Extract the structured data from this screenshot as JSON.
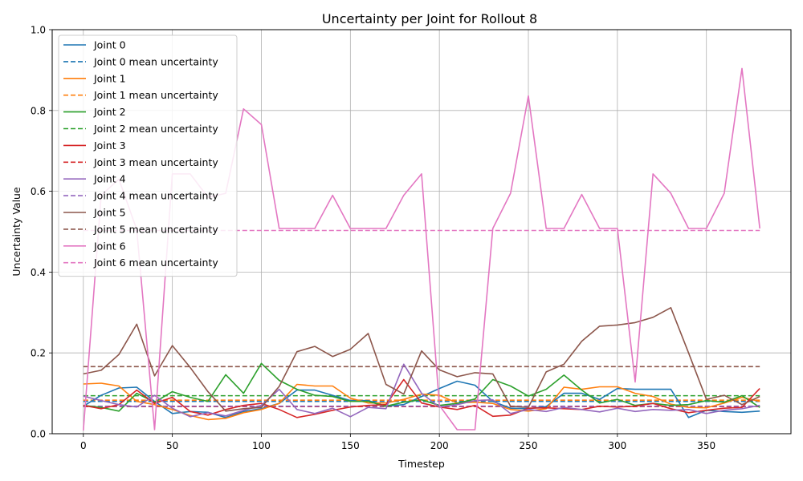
{
  "chart_data": {
    "type": "line",
    "title": "Uncertainty per Joint for Rollout 8",
    "xlabel": "Timestep",
    "ylabel": "Uncertainty Value",
    "xlim": [
      -17.5,
      397.5
    ],
    "ylim": [
      0,
      1
    ],
    "xticks": [
      0,
      50,
      100,
      150,
      200,
      250,
      300,
      350
    ],
    "yticks": [
      0.0,
      0.2,
      0.4,
      0.6,
      0.8,
      1.0
    ],
    "ytick_labels": [
      "0.0",
      "0.2",
      "0.4",
      "0.6",
      "0.8",
      "1.0"
    ],
    "grid": true,
    "legend_position": "upper-left",
    "x": [
      0,
      10,
      20,
      30,
      40,
      50,
      60,
      70,
      80,
      90,
      100,
      110,
      120,
      130,
      140,
      150,
      160,
      170,
      180,
      190,
      200,
      210,
      220,
      230,
      240,
      250,
      260,
      270,
      280,
      290,
      300,
      310,
      320,
      330,
      340,
      350,
      360,
      370,
      380
    ],
    "series": [
      {
        "name": "Joint 0",
        "color": "#1f77b4",
        "mean": 0.08,
        "mean_label": "Joint 0 mean uncertainty",
        "values": [
          0.068,
          0.095,
          0.113,
          0.115,
          0.08,
          0.05,
          0.055,
          0.053,
          0.04,
          0.055,
          0.062,
          0.075,
          0.108,
          0.108,
          0.095,
          0.082,
          0.082,
          0.068,
          0.072,
          0.092,
          0.112,
          0.13,
          0.12,
          0.08,
          0.063,
          0.062,
          0.067,
          0.1,
          0.1,
          0.085,
          0.112,
          0.11,
          0.11,
          0.11,
          0.04,
          0.058,
          0.055,
          0.053,
          0.056
        ]
      },
      {
        "name": "Joint 1",
        "color": "#ff7f0e",
        "mean": 0.083,
        "mean_label": "Joint 1 mean uncertainty",
        "values": [
          0.123,
          0.125,
          0.118,
          0.08,
          0.072,
          0.06,
          0.045,
          0.035,
          0.038,
          0.052,
          0.06,
          0.075,
          0.122,
          0.118,
          0.118,
          0.088,
          0.076,
          0.076,
          0.085,
          0.098,
          0.095,
          0.076,
          0.078,
          0.075,
          0.06,
          0.056,
          0.062,
          0.115,
          0.11,
          0.116,
          0.116,
          0.1,
          0.092,
          0.073,
          0.065,
          0.064,
          0.076,
          0.09,
          0.08
        ]
      },
      {
        "name": "Joint 2",
        "color": "#2ca02c",
        "mean": 0.094,
        "mean_label": "Joint 2 mean uncertainty",
        "values": [
          0.07,
          0.065,
          0.056,
          0.1,
          0.078,
          0.104,
          0.09,
          0.08,
          0.146,
          0.1,
          0.174,
          0.132,
          0.11,
          0.095,
          0.092,
          0.08,
          0.08,
          0.068,
          0.078,
          0.084,
          0.07,
          0.075,
          0.086,
          0.134,
          0.118,
          0.093,
          0.11,
          0.145,
          0.108,
          0.076,
          0.085,
          0.07,
          0.075,
          0.07,
          0.072,
          0.082,
          0.078,
          0.094,
          0.065
        ]
      },
      {
        "name": "Joint 3",
        "color": "#d62728",
        "mean": 0.067,
        "mean_label": "Joint 3 mean uncertainty",
        "values": [
          0.07,
          0.062,
          0.072,
          0.108,
          0.075,
          0.09,
          0.055,
          0.046,
          0.06,
          0.07,
          0.075,
          0.06,
          0.04,
          0.048,
          0.058,
          0.066,
          0.07,
          0.072,
          0.134,
          0.076,
          0.066,
          0.06,
          0.07,
          0.043,
          0.046,
          0.063,
          0.064,
          0.062,
          0.06,
          0.068,
          0.066,
          0.068,
          0.075,
          0.062,
          0.052,
          0.058,
          0.063,
          0.065,
          0.112
        ]
      },
      {
        "name": "Joint 4",
        "color": "#9467bd",
        "mean": 0.068,
        "mean_label": "Joint 4 mean uncertainty",
        "values": [
          0.093,
          0.082,
          0.072,
          0.066,
          0.095,
          0.063,
          0.042,
          0.052,
          0.044,
          0.058,
          0.07,
          0.11,
          0.06,
          0.05,
          0.063,
          0.042,
          0.065,
          0.062,
          0.172,
          0.1,
          0.066,
          0.072,
          0.082,
          0.084,
          0.05,
          0.06,
          0.055,
          0.065,
          0.06,
          0.054,
          0.063,
          0.055,
          0.06,
          0.058,
          0.06,
          0.05,
          0.058,
          0.062,
          0.07
        ]
      },
      {
        "name": "Joint 5",
        "color": "#8c564b",
        "mean": 0.166,
        "mean_label": "Joint 5 mean uncertainty",
        "values": [
          0.148,
          0.157,
          0.196,
          0.271,
          0.143,
          0.218,
          0.164,
          0.104,
          0.056,
          0.062,
          0.065,
          0.117,
          0.203,
          0.216,
          0.191,
          0.209,
          0.248,
          0.122,
          0.098,
          0.205,
          0.158,
          0.141,
          0.151,
          0.148,
          0.068,
          0.065,
          0.153,
          0.172,
          0.229,
          0.266,
          0.269,
          0.275,
          0.288,
          0.312,
          0.2,
          0.085,
          0.095,
          0.072,
          0.092
        ]
      },
      {
        "name": "Joint 6",
        "color": "#e377c2",
        "mean": 0.503,
        "mean_label": "Joint 6 mean uncertainty",
        "values": [
          0.008,
          0.59,
          0.63,
          0.505,
          0.01,
          0.643,
          0.643,
          0.585,
          0.595,
          0.804,
          0.765,
          0.508,
          0.508,
          0.508,
          0.59,
          0.508,
          0.508,
          0.508,
          0.59,
          0.643,
          0.07,
          0.01,
          0.01,
          0.508,
          0.595,
          0.836,
          0.508,
          0.508,
          0.592,
          0.508,
          0.508,
          0.128,
          0.643,
          0.595,
          0.508,
          0.508,
          0.595,
          0.904,
          0.508
        ]
      }
    ]
  }
}
